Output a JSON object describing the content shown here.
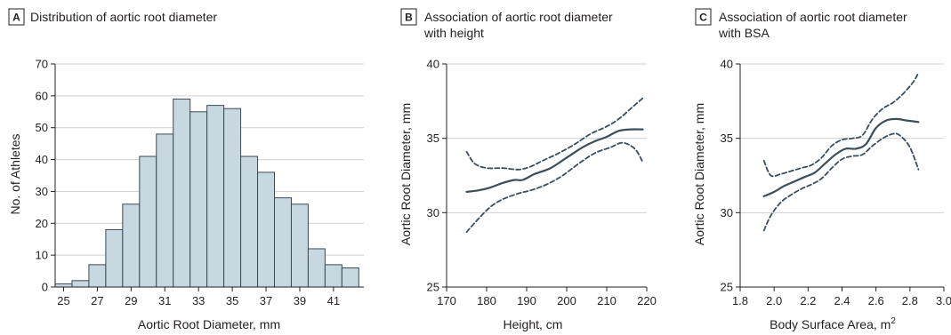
{
  "chart_data": [
    {
      "panel": "A",
      "type": "bar",
      "title": "Distribution of aortic root diameter",
      "xlabel": "Aortic Root Diameter, mm",
      "ylabel": "No. of Athletes",
      "xlim": [
        24.5,
        42.8
      ],
      "ylim": [
        0,
        70
      ],
      "yticks": [
        0,
        10,
        20,
        30,
        40,
        50,
        60,
        70
      ],
      "xticks": [
        25,
        27,
        29,
        31,
        33,
        35,
        37,
        39,
        41
      ],
      "bins": [
        {
          "start": 24.5,
          "end": 25.5,
          "value": 1
        },
        {
          "start": 25.5,
          "end": 26.5,
          "value": 2
        },
        {
          "start": 26.5,
          "end": 27.5,
          "value": 7
        },
        {
          "start": 27.5,
          "end": 28.5,
          "value": 18
        },
        {
          "start": 28.5,
          "end": 29.5,
          "value": 26
        },
        {
          "start": 29.5,
          "end": 30.5,
          "value": 41
        },
        {
          "start": 30.5,
          "end": 31.5,
          "value": 48
        },
        {
          "start": 31.5,
          "end": 32.5,
          "value": 59
        },
        {
          "start": 32.5,
          "end": 33.5,
          "value": 55
        },
        {
          "start": 33.5,
          "end": 34.5,
          "value": 57
        },
        {
          "start": 34.5,
          "end": 35.5,
          "value": 56
        },
        {
          "start": 35.5,
          "end": 36.5,
          "value": 41
        },
        {
          "start": 36.5,
          "end": 37.5,
          "value": 36
        },
        {
          "start": 37.5,
          "end": 38.5,
          "value": 28
        },
        {
          "start": 38.5,
          "end": 39.5,
          "value": 26
        },
        {
          "start": 39.5,
          "end": 40.5,
          "value": 12
        },
        {
          "start": 40.5,
          "end": 41.5,
          "value": 7
        },
        {
          "start": 41.5,
          "end": 42.5,
          "value": 6
        }
      ],
      "grid": "horizontal",
      "colors": {
        "bar_fill": "#c8d8e0",
        "bar_stroke": "#3a4a55"
      }
    },
    {
      "panel": "B",
      "type": "line",
      "title": [
        "Association of aortic root diameter",
        "with height"
      ],
      "xlabel": "Height, cm",
      "ylabel": "Aortic Root Diameter, mm",
      "xlim": [
        170,
        220
      ],
      "ylim": [
        25,
        40
      ],
      "xticks": [
        170,
        180,
        190,
        200,
        210,
        220
      ],
      "yticks": [
        25,
        30,
        35,
        40
      ],
      "grid": "horizontal",
      "series": [
        {
          "style": "solid",
          "x": [
            175,
            178,
            181,
            184,
            187,
            189,
            192,
            196,
            200,
            204,
            207,
            210,
            213,
            216,
            219
          ],
          "y": [
            31.4,
            31.5,
            31.7,
            32.0,
            32.2,
            32.2,
            32.6,
            33.0,
            33.7,
            34.4,
            34.8,
            35.1,
            35.5,
            35.6,
            35.6
          ]
        },
        {
          "style": "dashed",
          "x": [
            175,
            177,
            180,
            184,
            188,
            191,
            194,
            198,
            202,
            206,
            210,
            213,
            216,
            219
          ],
          "y": [
            34.1,
            33.3,
            33.0,
            33.0,
            32.9,
            33.1,
            33.5,
            34.0,
            34.6,
            35.3,
            35.8,
            36.3,
            37.0,
            37.7
          ]
        },
        {
          "style": "dashed",
          "x": [
            175,
            178,
            181,
            184,
            188,
            191,
            195,
            199,
            203,
            207,
            211,
            214,
            217,
            219
          ],
          "y": [
            28.7,
            29.6,
            30.4,
            30.9,
            31.3,
            31.5,
            31.9,
            32.5,
            33.3,
            34.0,
            34.4,
            34.7,
            34.3,
            33.4
          ]
        }
      ],
      "colors": {
        "line": "#3a4e5c"
      }
    },
    {
      "panel": "C",
      "type": "line",
      "title": [
        "Association of aortic root diameter",
        "with BSA"
      ],
      "xlabel": "Body Surface Area, m",
      "xlabel_superscript": "2",
      "ylabel": "Aortic Root Diameter, mm",
      "xlim": [
        1.8,
        3.0
      ],
      "ylim": [
        25,
        40
      ],
      "xticks": [
        "1.8",
        "2.0",
        "2.2",
        "2.4",
        "2.6",
        "2.8",
        "3.0"
      ],
      "yticks": [
        25,
        30,
        35,
        40
      ],
      "grid": "horizontal",
      "series": [
        {
          "style": "solid",
          "x": [
            1.94,
            2.0,
            2.06,
            2.12,
            2.18,
            2.24,
            2.3,
            2.36,
            2.42,
            2.48,
            2.54,
            2.6,
            2.66,
            2.72,
            2.78,
            2.85
          ],
          "y": [
            31.1,
            31.4,
            31.8,
            32.1,
            32.4,
            32.7,
            33.3,
            33.9,
            34.3,
            34.3,
            34.6,
            35.7,
            36.2,
            36.3,
            36.2,
            36.1
          ]
        },
        {
          "style": "dashed",
          "x": [
            1.94,
            1.98,
            2.04,
            2.1,
            2.16,
            2.22,
            2.28,
            2.34,
            2.4,
            2.46,
            2.52,
            2.58,
            2.64,
            2.7,
            2.76,
            2.82,
            2.85
          ],
          "y": [
            33.5,
            32.5,
            32.6,
            32.8,
            33.0,
            33.2,
            33.7,
            34.5,
            34.9,
            35.0,
            35.2,
            36.3,
            37.0,
            37.4,
            38.0,
            38.8,
            39.4
          ]
        },
        {
          "style": "dashed",
          "x": [
            1.94,
            1.98,
            2.04,
            2.1,
            2.16,
            2.22,
            2.28,
            2.34,
            2.4,
            2.46,
            2.52,
            2.58,
            2.64,
            2.7,
            2.74,
            2.8,
            2.85
          ],
          "y": [
            28.8,
            29.8,
            30.7,
            31.2,
            31.6,
            31.9,
            32.3,
            33.0,
            33.6,
            33.8,
            33.9,
            34.5,
            35.0,
            35.3,
            35.2,
            34.4,
            32.9
          ]
        }
      ],
      "colors": {
        "line": "#3a4e5c"
      }
    }
  ]
}
